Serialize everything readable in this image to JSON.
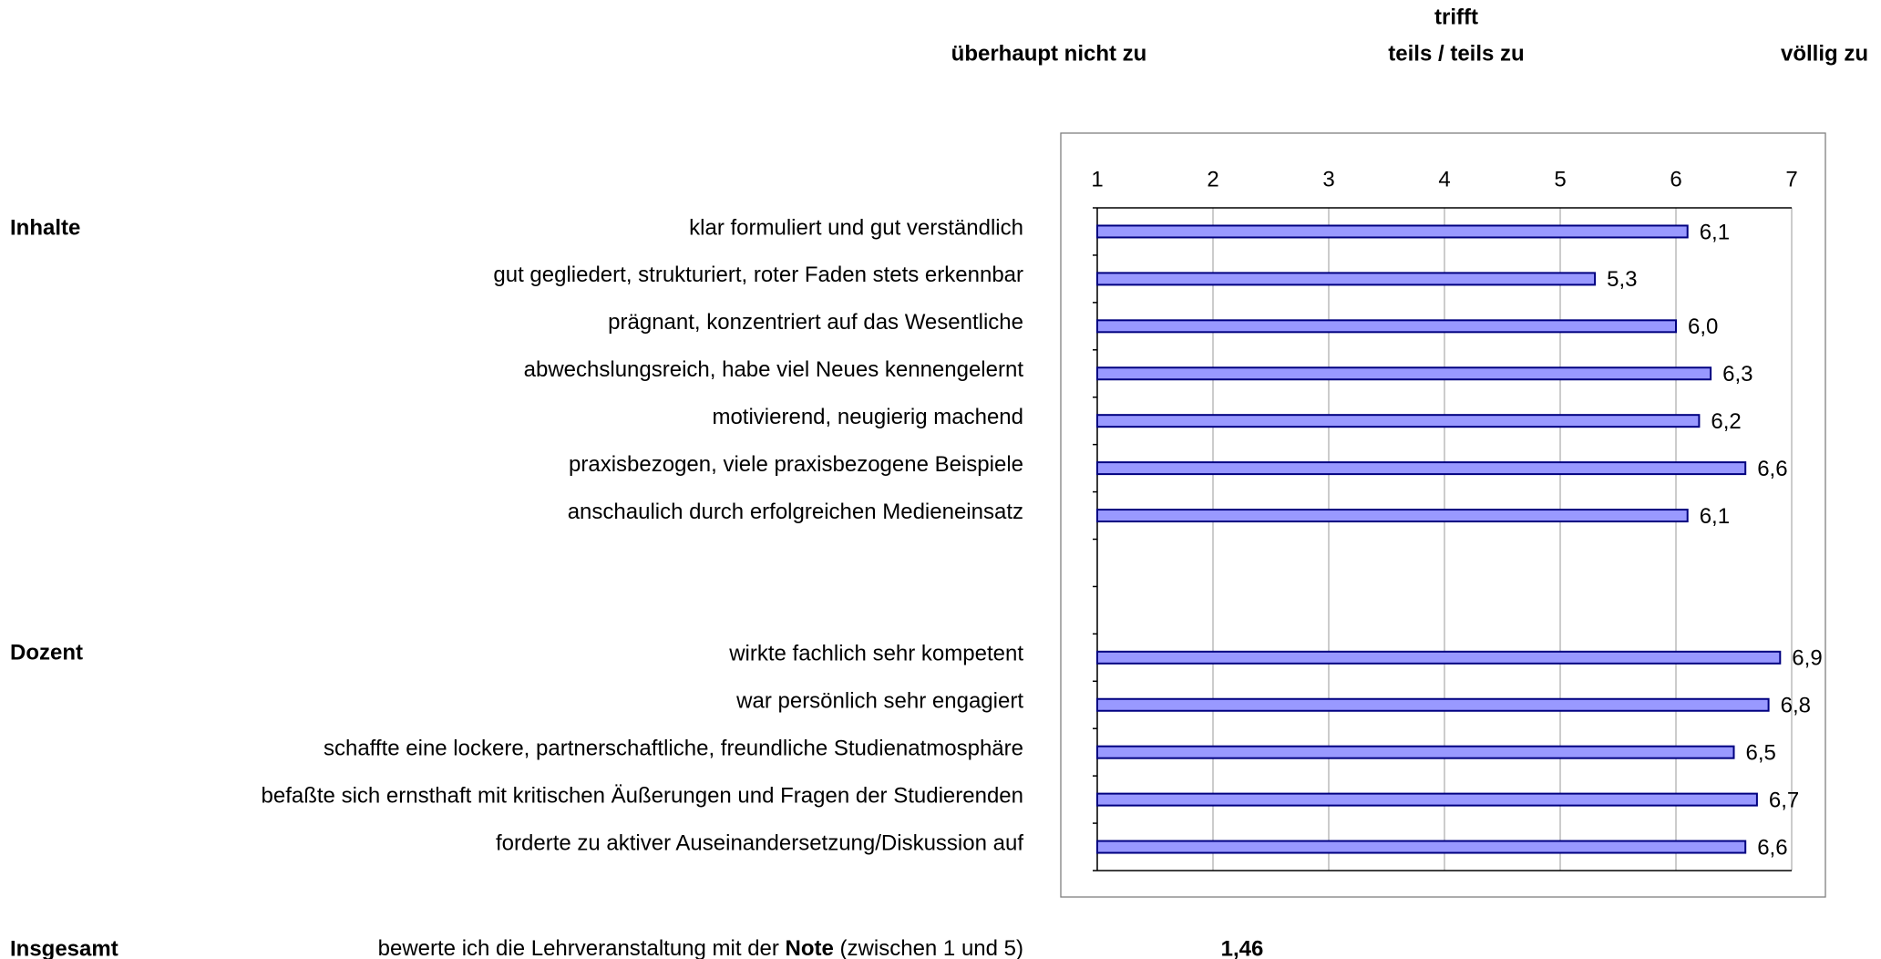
{
  "chart_data": {
    "type": "bar",
    "header": {
      "low": "überhaupt nicht zu",
      "mid_top": "trifft",
      "mid": "teils / teils zu",
      "high": "völlig zu"
    },
    "sections": [
      "Inhalte",
      "Dozent"
    ],
    "categories": [
      "klar formuliert und gut verständlich",
      "gut gegliedert, strukturiert, roter Faden stets erkennbar",
      "prägnant, konzentriert auf das Wesentliche",
      "abwechslungsreich, habe viel Neues kennengelernt",
      "motivierend, neugierig machend",
      "praxisbezogen, viele praxisbezogene Beispiele",
      "anschaulich durch erfolgreichen Medieneinsatz",
      null,
      null,
      "wirkte fachlich sehr kompetent",
      "war persönlich sehr engagiert",
      "schaffte eine lockere, partnerschaftliche, freundliche Studienatmosphäre",
      "befaßte sich ernsthaft mit kritischen Äußerungen und Fragen der Studierenden",
      "forderte zu aktiver Auseinandersetzung/Diskussion auf"
    ],
    "series": [
      {
        "color": "#9999ff",
        "values": [
          6.1,
          5.3,
          6.0,
          6.3,
          6.2,
          6.6,
          6.1,
          null,
          null,
          6.9,
          6.8,
          6.5,
          6.7,
          6.6
        ],
        "value_labels": [
          "6,1",
          "5,3",
          "6,0",
          "6,3",
          "6,2",
          "6,6",
          "6,1",
          null,
          null,
          "6,9",
          "6,8",
          "6,5",
          "6,7",
          "6,6"
        ]
      }
    ],
    "xlim": [
      1,
      7
    ],
    "xticks": [
      1,
      2,
      3,
      4,
      5,
      6,
      7
    ],
    "grid": true,
    "footer": {
      "label": "Insgesamt",
      "text_before": "bewerte ich die Lehrveranstaltung mit der ",
      "text_bold": "Note",
      "text_after": " (zwischen 1 und 5)",
      "result": "1,46"
    }
  }
}
